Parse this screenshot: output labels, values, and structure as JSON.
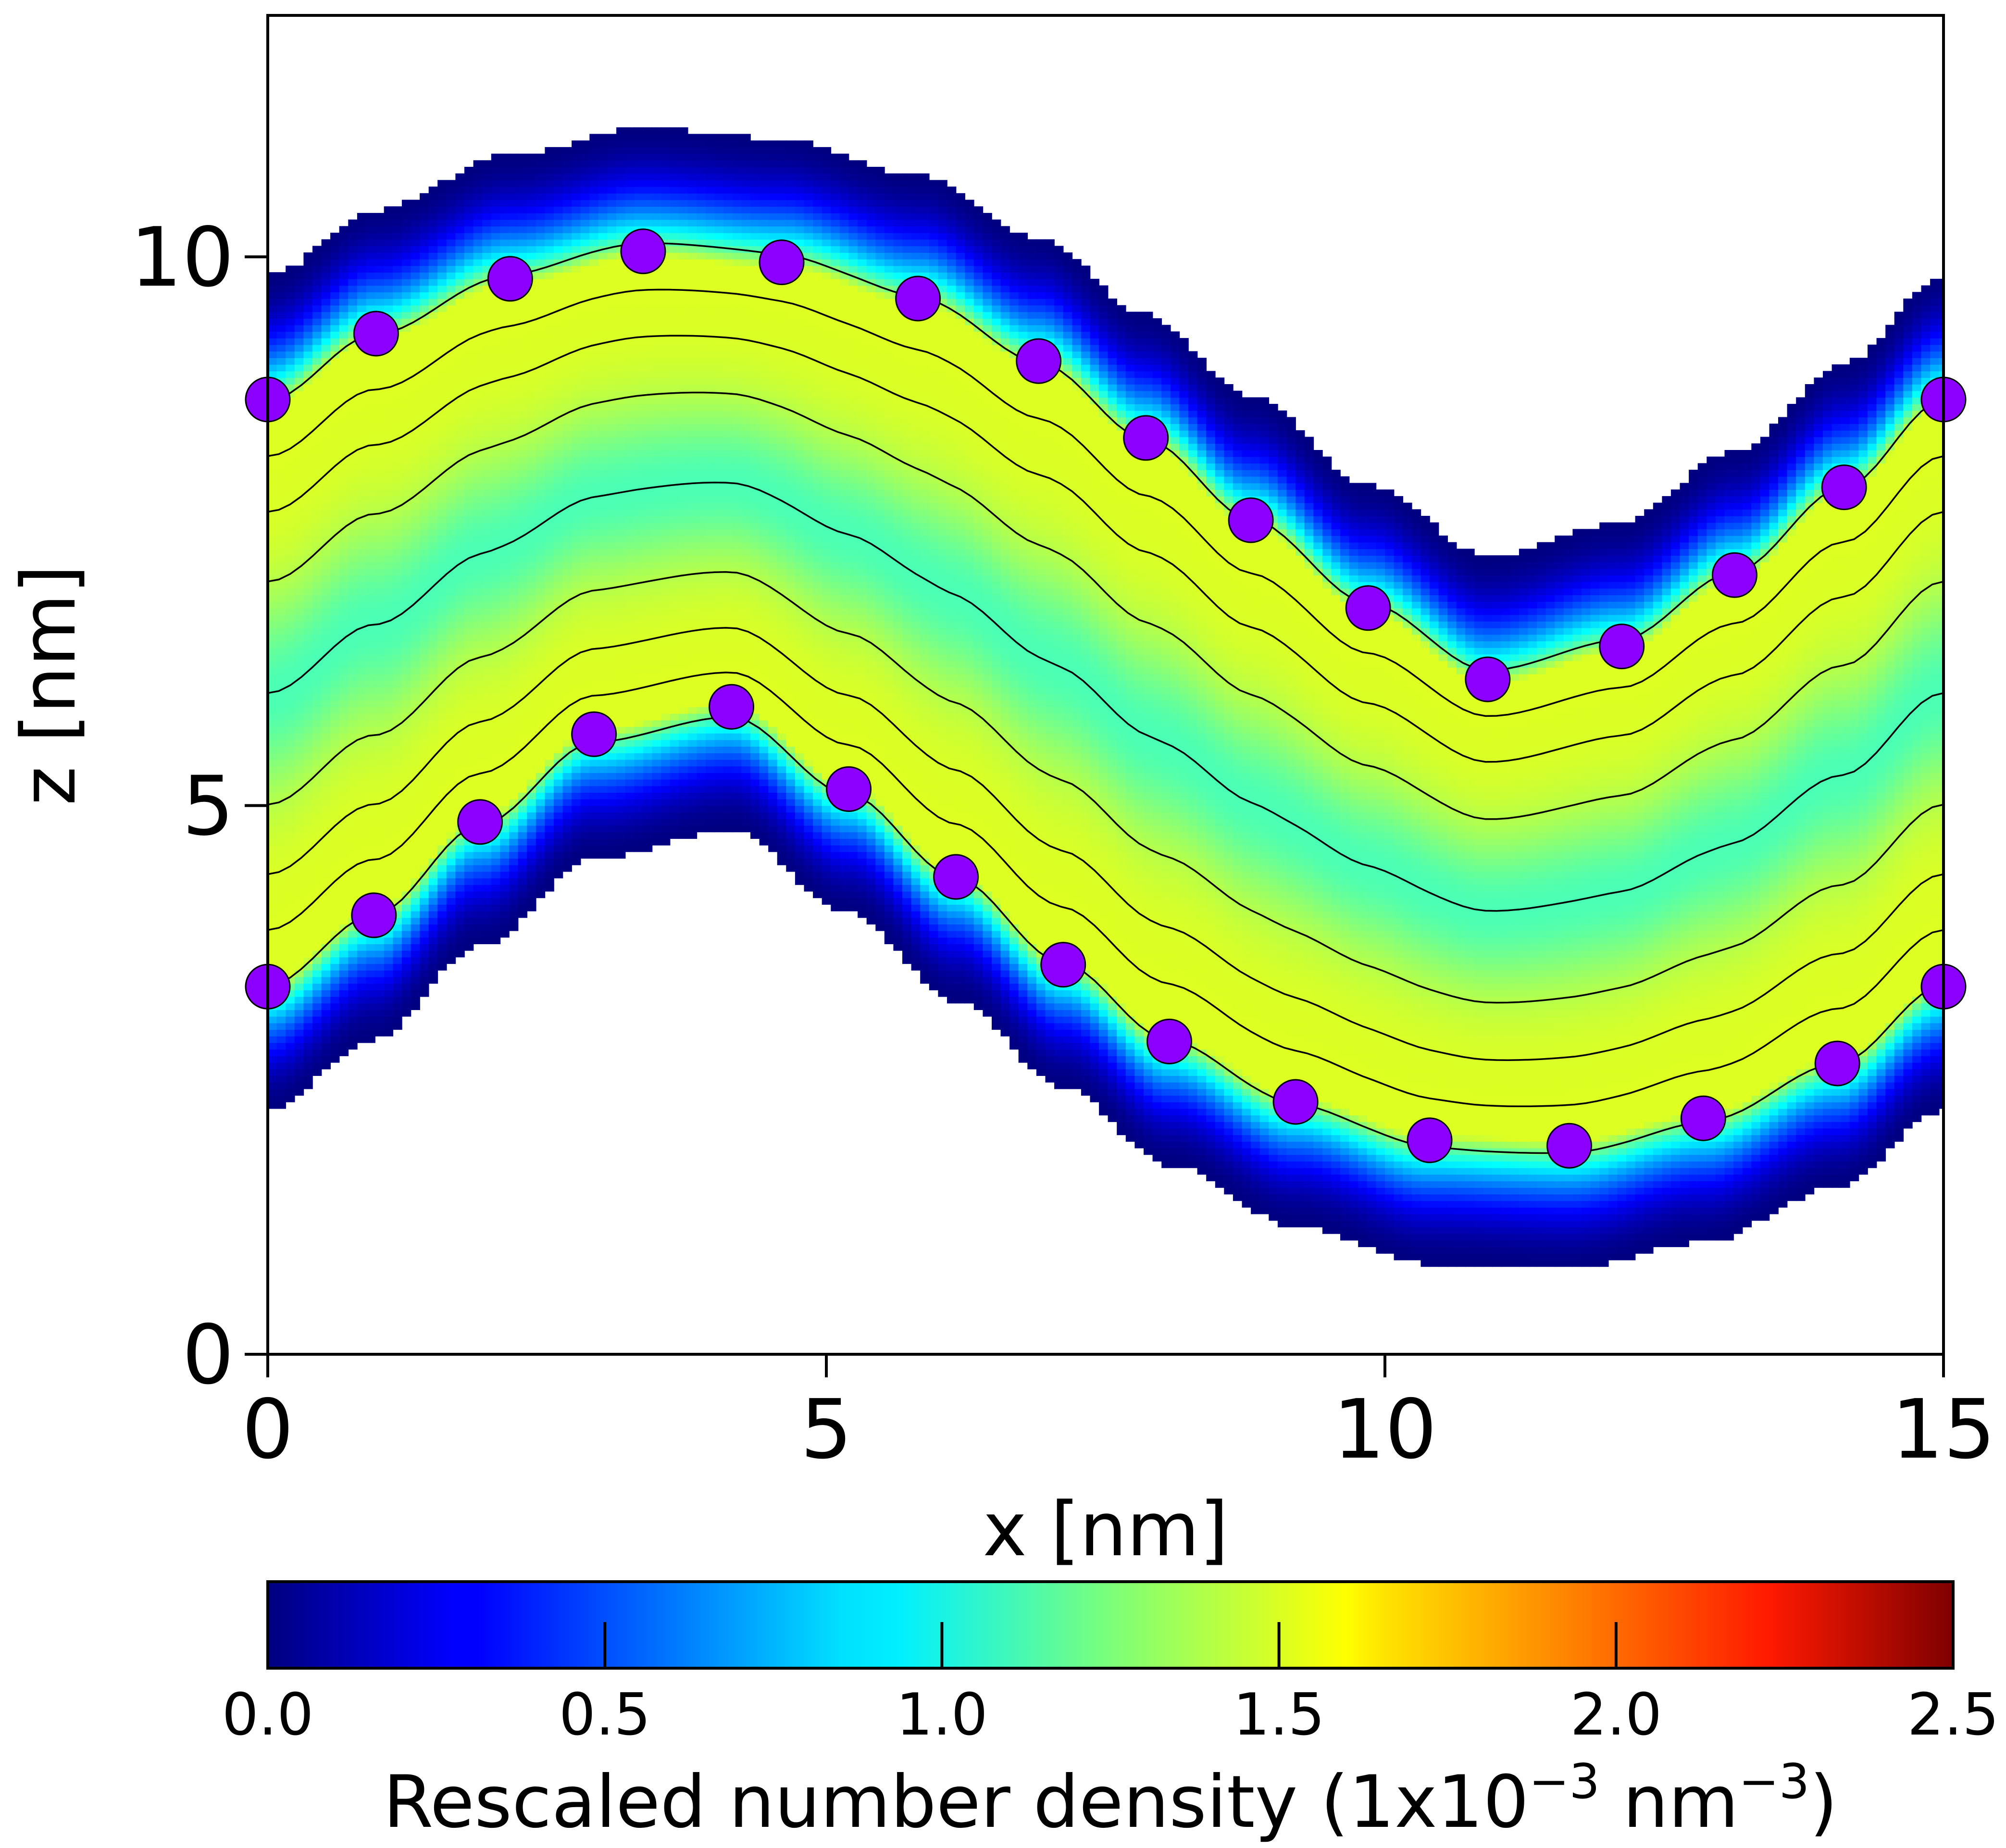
{
  "chart_data": {
    "type": "heatmap",
    "title": "",
    "xlabel": "x [nm]",
    "ylabel": "z [nm]",
    "xlim": [
      0,
      15
    ],
    "ylim": [
      0,
      12.2
    ],
    "x_ticks": [
      0,
      5,
      10,
      15
    ],
    "x_tick_labels": [
      "0",
      "5",
      "10",
      "15"
    ],
    "y_ticks": [
      0,
      5,
      10
    ],
    "y_tick_labels": [
      "0",
      "5",
      "10"
    ],
    "colormap": "jet",
    "colorbar": {
      "label_main": "Rescaled number density (1x10",
      "label_exp1": "−3",
      "label_mid": " nm",
      "label_exp2": "−3",
      "label_end": ")",
      "range": [
        0,
        2.5
      ],
      "ticks": [
        0.0,
        0.5,
        1.0,
        1.5,
        2.0,
        2.5
      ],
      "tick_labels": [
        "0.0",
        "0.5",
        "1.0",
        "1.5",
        "2.0",
        "2.5"
      ],
      "orientation": "horizontal",
      "placement": "bottom"
    },
    "membrane_shape": {
      "description_of_field": "bilayer density between two undulating surfaces",
      "upper_leaflet_headgroups": {
        "x": [
          0.0,
          0.97,
          2.17,
          3.36,
          4.6,
          5.82,
          6.9,
          7.86,
          8.8,
          9.85,
          10.92,
          12.12,
          13.13,
          14.11,
          15.0
        ],
        "z": [
          8.7,
          9.3,
          9.8,
          10.05,
          9.95,
          9.62,
          9.05,
          8.35,
          7.6,
          6.8,
          6.15,
          6.45,
          7.1,
          7.9,
          8.7
        ]
      },
      "lower_leaflet_headgroups": {
        "x": [
          0.0,
          0.95,
          1.9,
          2.92,
          4.15,
          5.2,
          6.16,
          7.12,
          8.07,
          9.2,
          10.4,
          11.65,
          12.85,
          14.05,
          15.0
        ],
        "z": [
          3.35,
          4.0,
          4.85,
          5.65,
          5.9,
          5.15,
          4.35,
          3.55,
          2.85,
          2.3,
          1.95,
          1.9,
          2.15,
          2.65,
          3.35
        ]
      },
      "marker_color": "#8b00ff"
    }
  }
}
